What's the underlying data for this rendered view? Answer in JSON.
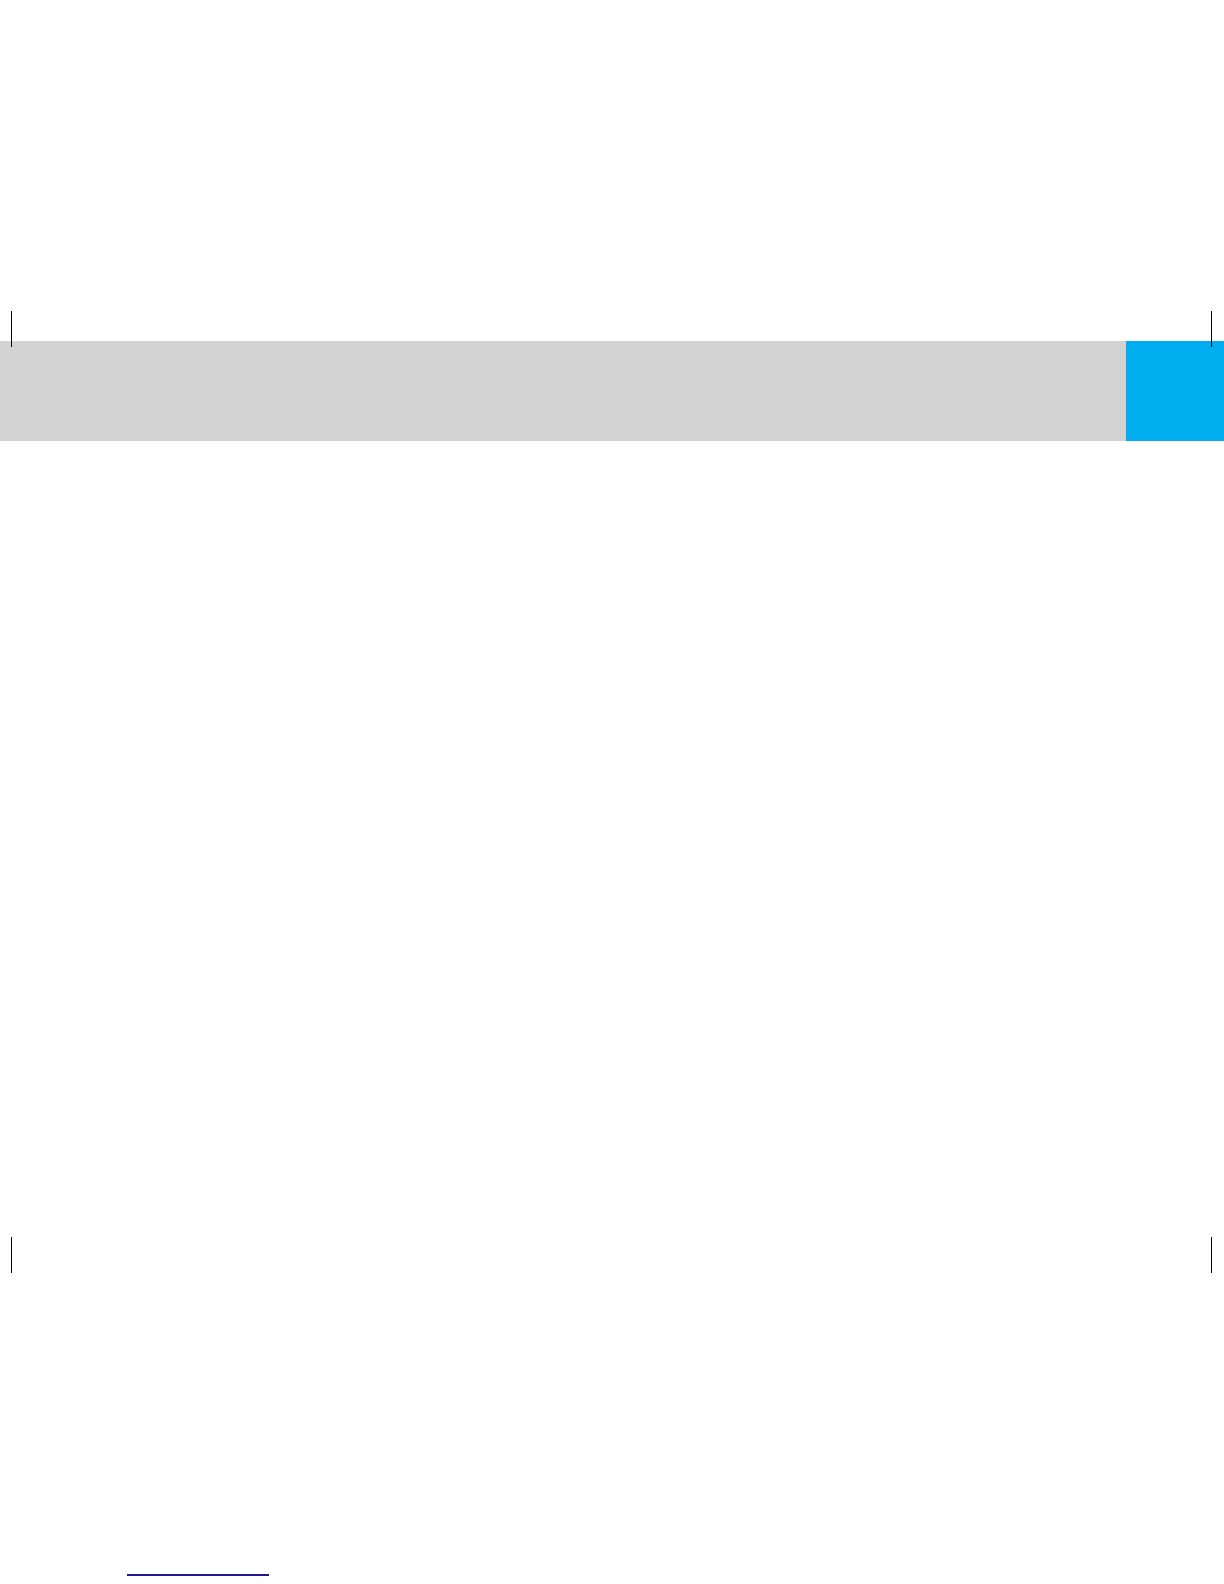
{
  "colors": {
    "band": "#d3d3d3",
    "accent": "#00aeef",
    "crop_marks": "#000000",
    "underline": "#1a1a99"
  }
}
